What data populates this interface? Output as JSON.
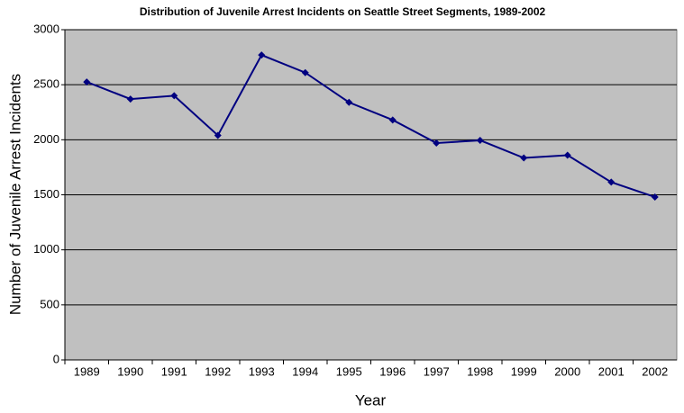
{
  "chart_data": {
    "type": "line",
    "title": "Distribution of Juvenile Arrest Incidents on Seattle Street Segments, 1989-2002",
    "x_label": "Year",
    "y_label": "Number of Juvenile  Arrest Incidents",
    "categories": [
      "1989",
      "1990",
      "1991",
      "1992",
      "1993",
      "1994",
      "1995",
      "1996",
      "1997",
      "1998",
      "1999",
      "2000",
      "2001",
      "2002"
    ],
    "series": [
      {
        "name": "Juvenile arrest incidents",
        "color": "#000080",
        "values": [
          2525,
          2370,
          2400,
          2040,
          2770,
          2610,
          2340,
          2180,
          1970,
          1995,
          1835,
          1860,
          1615,
          1480
        ]
      }
    ],
    "ylim": [
      0,
      3000
    ],
    "yticks": [
      0,
      500,
      1000,
      1500,
      2000,
      2500,
      3000
    ],
    "grid": true
  }
}
